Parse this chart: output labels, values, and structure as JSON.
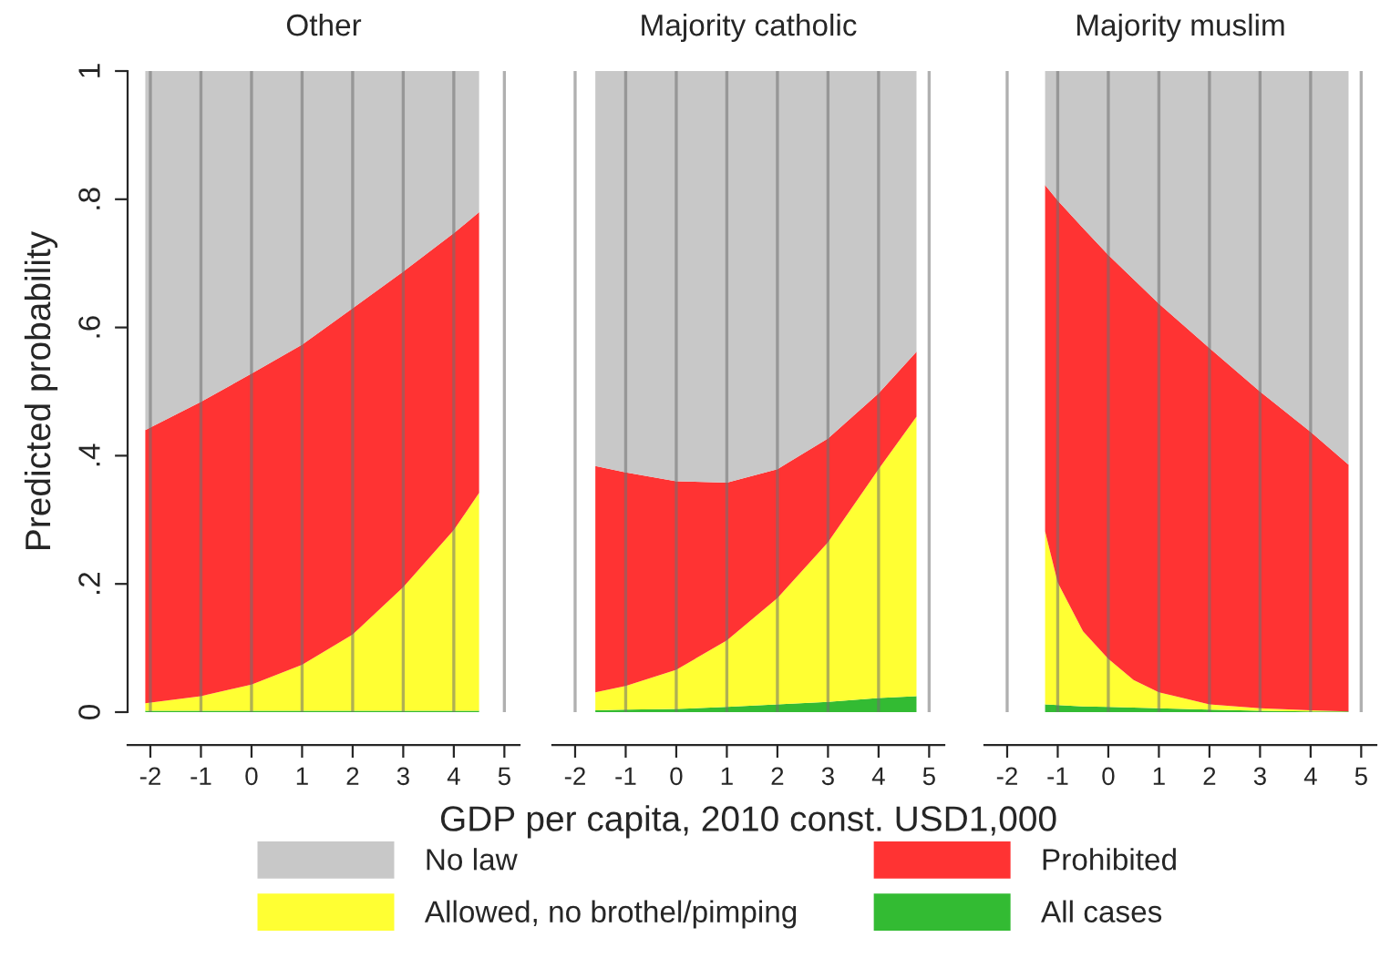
{
  "chart_data": [
    {
      "type": "area",
      "stacked": true,
      "title": "Other",
      "ylabel": "Predicted probability",
      "x": [
        -2.1,
        -1,
        0,
        1,
        2,
        3,
        4,
        4.5
      ],
      "xlim": [
        -2.45,
        5.3
      ],
      "xticks": [
        -2,
        -1,
        0,
        1,
        2,
        3,
        4,
        5
      ],
      "ylim": [
        0,
        1
      ],
      "yticks": [
        0,
        {
          "value": 0.2,
          "label": ".2"
        },
        {
          "value": 0.4,
          "label": ".4"
        },
        {
          "value": 0.6,
          "label": ".6"
        },
        {
          "value": 0.8,
          "label": ".8"
        },
        1
      ],
      "grid": "x",
      "legend": "bottom",
      "series": [
        {
          "name": "All cases",
          "color": "#33bb33",
          "values": [
            0.002,
            0.002,
            0.002,
            0.002,
            0.002,
            0.002,
            0.002,
            0.002
          ]
        },
        {
          "name": "Allowed, no brothel/pimping",
          "color": "#ffff33",
          "values": [
            0.012,
            0.023,
            0.041,
            0.072,
            0.119,
            0.193,
            0.282,
            0.34
          ]
        },
        {
          "name": "Prohibited",
          "color": "#ff3333",
          "values": [
            0.426,
            0.459,
            0.485,
            0.499,
            0.509,
            0.492,
            0.463,
            0.438
          ]
        },
        {
          "name": "No law",
          "color": "#c8c8c8",
          "values": [
            0.56,
            0.516,
            0.472,
            0.427,
            0.37,
            0.313,
            0.253,
            0.22
          ]
        }
      ]
    },
    {
      "type": "area",
      "stacked": true,
      "title": "Majority catholic",
      "xlabel": "GDP per capita, 2010 const. USD1,000",
      "x": [
        -1.6,
        -1,
        0,
        1,
        2,
        3,
        4,
        4.75
      ],
      "xlim": [
        -2.45,
        5.3
      ],
      "xticks": [
        -2,
        -1,
        0,
        1,
        2,
        3,
        4,
        5
      ],
      "ylim": [
        0,
        1
      ],
      "tick_labels": "x",
      "grid": "x",
      "series": [
        {
          "color": "#33bb33",
          "values": [
            0.003,
            0.004,
            0.005,
            0.008,
            0.012,
            0.016,
            0.022,
            0.025
          ]
        },
        {
          "color": "#ffff33",
          "values": [
            0.028,
            0.037,
            0.061,
            0.104,
            0.166,
            0.249,
            0.357,
            0.436
          ]
        },
        {
          "color": "#ff3333",
          "values": [
            0.353,
            0.333,
            0.294,
            0.246,
            0.201,
            0.162,
            0.118,
            0.101
          ]
        },
        {
          "color": "#c8c8c8",
          "values": [
            0.616,
            0.626,
            0.64,
            0.642,
            0.621,
            0.573,
            0.503,
            0.438
          ]
        }
      ]
    },
    {
      "type": "area",
      "stacked": true,
      "title": "Majority muslim",
      "x": [
        -1.25,
        -1,
        -0.5,
        0,
        0.5,
        1,
        2,
        3,
        4,
        4.75
      ],
      "xlim": [
        -2.45,
        5.3
      ],
      "xticks": [
        -2,
        -1,
        0,
        1,
        2,
        3,
        4,
        5
      ],
      "ylim": [
        0,
        1
      ],
      "tick_labels": "x",
      "grid": "x",
      "series": [
        {
          "color": "#33bb33",
          "values": [
            0.012,
            0.011,
            0.009,
            0.008,
            0.007,
            0.006,
            0.004,
            0.002,
            0.001,
            0.001
          ]
        },
        {
          "color": "#ffff33",
          "values": [
            0.27,
            0.191,
            0.117,
            0.075,
            0.043,
            0.025,
            0.008,
            0.004,
            0.002,
            0
          ]
        },
        {
          "color": "#ff3333",
          "values": [
            0.54,
            0.596,
            0.629,
            0.63,
            0.625,
            0.606,
            0.556,
            0.494,
            0.434,
            0.385
          ]
        },
        {
          "color": "#c8c8c8",
          "values": [
            0.178,
            0.202,
            0.245,
            0.287,
            0.325,
            0.363,
            0.432,
            0.5,
            0.563,
            0.614
          ]
        }
      ]
    }
  ]
}
